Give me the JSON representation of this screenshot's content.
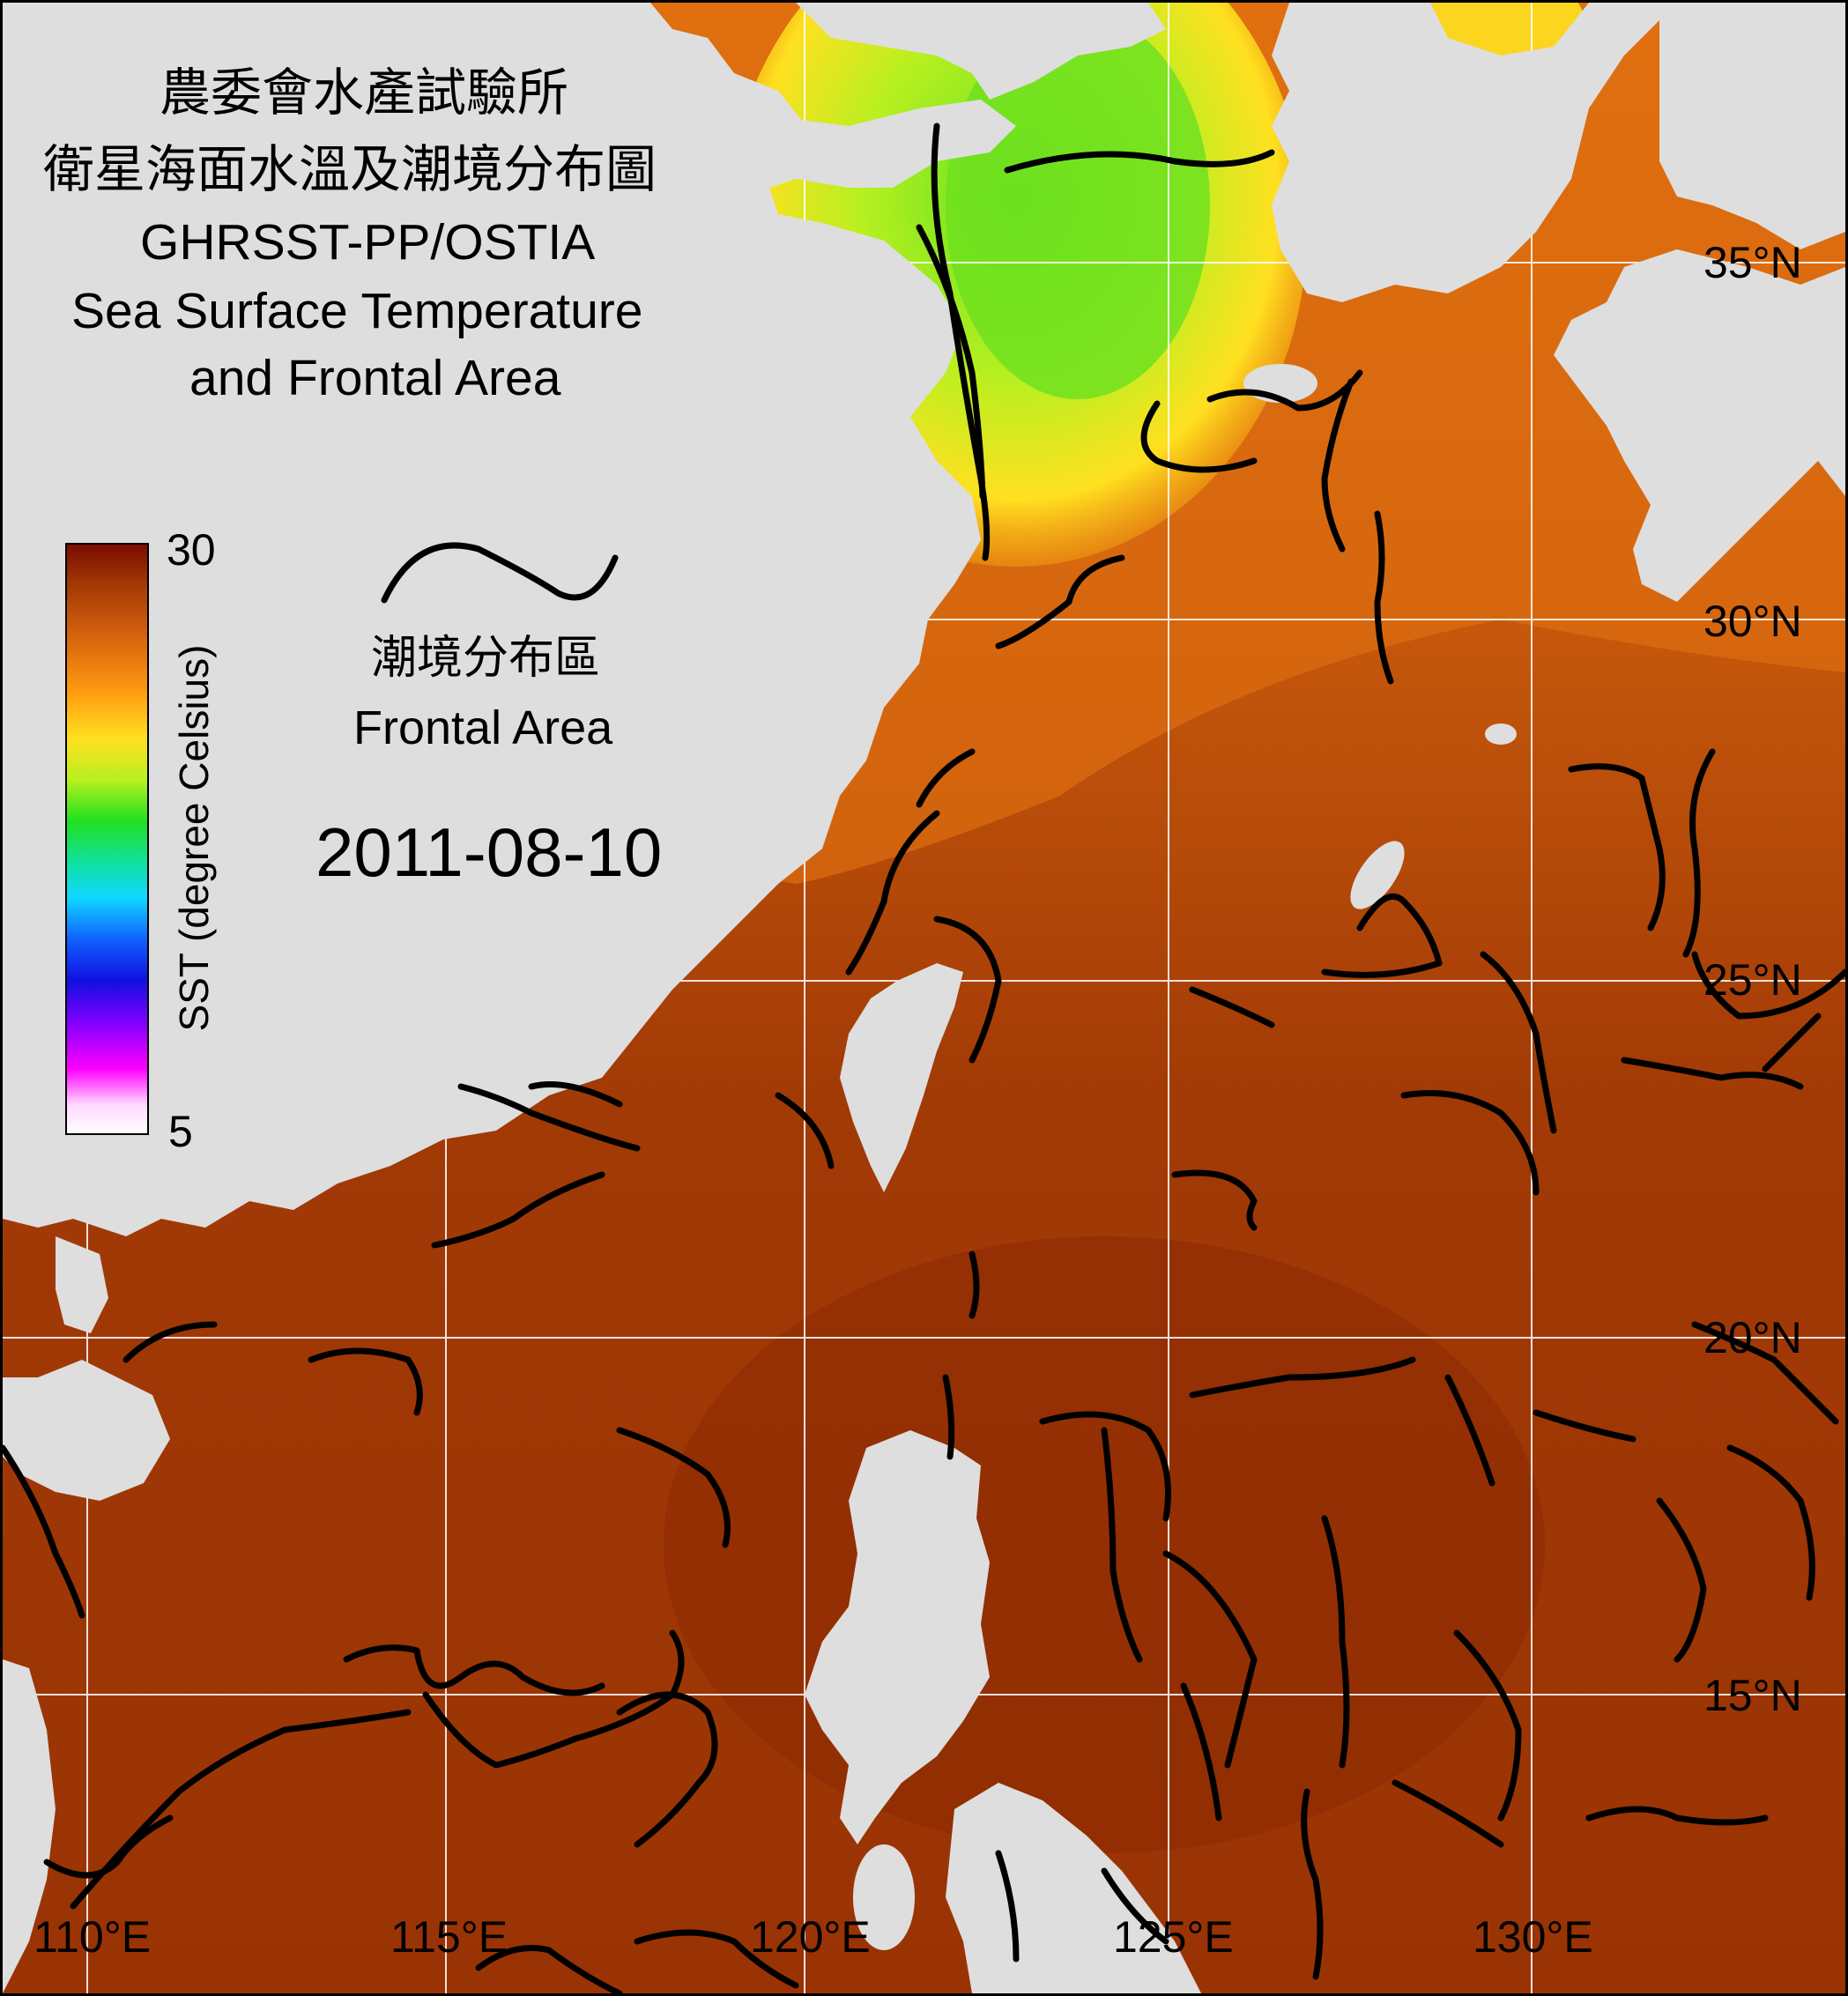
{
  "title": {
    "line1": "農委會水產試驗所",
    "line2": "衛星海面水溫及潮境分布圖",
    "line3": "GHRSST-PP/OSTIA",
    "line4": "Sea Surface Temperature",
    "line5": "and Frontal Area"
  },
  "legend": {
    "max_label": "30",
    "min_label": "5",
    "axis_label": "SST (degree Celsius)",
    "colors": [
      "#7a0a00",
      "#a33a06",
      "#d8640e",
      "#ff9a10",
      "#ffe020",
      "#b8f020",
      "#20e020",
      "#10e0a0",
      "#10d8ff",
      "#1060ff",
      "#1010e0",
      "#8000ff",
      "#ff00ff",
      "#ffd8ff",
      "#ffffff"
    ]
  },
  "front_legend": {
    "label_zh": "潮境分布區",
    "label_en": "Frontal Area"
  },
  "date": "2011-08-10",
  "latitude_labels": [
    "35°N",
    "30°N",
    "25°N",
    "20°N",
    "15°N"
  ],
  "longitude_labels": [
    "110°E",
    "115°E",
    "120°E",
    "125°E",
    "130°E"
  ],
  "colors": {
    "land": "#dedede",
    "sea_warm": "#a53e08",
    "sea_mid": "#d86a10",
    "sea_cool": "#ffd820",
    "sea_cold": "#80e020",
    "front": "#000000",
    "grid": "#ffffff"
  }
}
